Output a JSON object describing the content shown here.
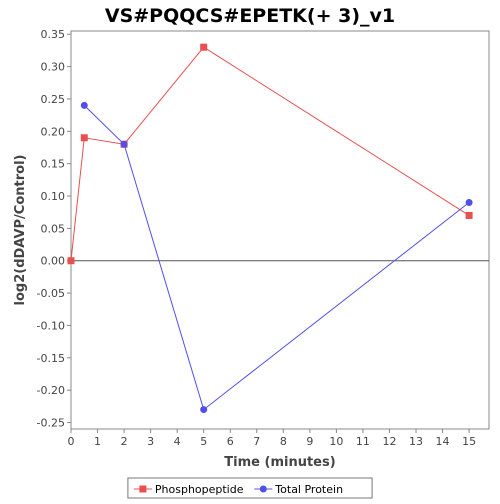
{
  "chart_data": {
    "type": "line",
    "title": "VS#PQQCS#EPETK(+ 3)_v1",
    "xlabel": "Time (minutes)",
    "ylabel": "log2(dDAVP/Control)",
    "xlim": [
      0,
      15.75
    ],
    "ylim": [
      -0.26,
      0.355
    ],
    "x_ticks": [
      0,
      1,
      2,
      3,
      4,
      5,
      6,
      7,
      8,
      9,
      10,
      11,
      12,
      13,
      14,
      15
    ],
    "y_ticks": [
      0.35,
      0.3,
      0.25,
      0.2,
      0.15,
      0.1,
      0.05,
      0.0,
      -0.05,
      -0.1,
      -0.15,
      -0.2,
      -0.25
    ],
    "y_tick_labels": [
      "0.35",
      "0.30",
      "0.25",
      "0.20",
      "0.15",
      "0.10",
      "0.05",
      "0.00",
      "-0.05",
      "-0.10",
      "-0.15",
      "-0.20",
      "-0.25"
    ],
    "zero_line": true,
    "grid": false,
    "legend_position": "bottom",
    "series": [
      {
        "name": "Phosphopeptide",
        "color": "#e8504f",
        "marker": "square",
        "x": [
          0,
          0.5,
          2,
          5,
          15
        ],
        "y": [
          0.0,
          0.19,
          0.18,
          0.33,
          0.07
        ]
      },
      {
        "name": "Total Protein",
        "color": "#5050e8",
        "marker": "circle",
        "x": [
          0.5,
          2,
          5,
          15
        ],
        "y": [
          0.24,
          0.18,
          -0.23,
          0.09
        ]
      }
    ]
  }
}
